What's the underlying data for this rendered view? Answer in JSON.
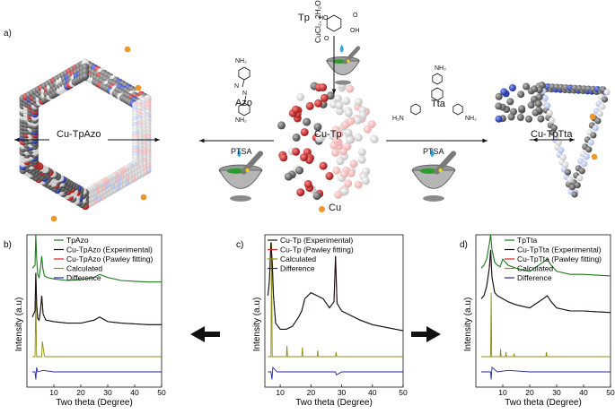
{
  "panel_a": {
    "letter": "a)",
    "tp_label": "Tp",
    "cucl2_label": "CuCl₂, 2H₂O",
    "azo_label": "Azo",
    "tta_label": "Tta",
    "ptsa_left": "PTSA",
    "ptsa_right": "PTSA",
    "cu_tp": "Cu-Tp",
    "cu_tpazo": "Cu-TpAzo",
    "cu_tptta": "Cu-TpTta",
    "cu_legend": "Cu",
    "nh2": "NH₂",
    "h2n": "H₂N",
    "oh": "OH",
    "ho": "HO",
    "o": "O",
    "n": "N",
    "colors": {
      "cu_dot": "#f0962a",
      "carbon": "#5a5a5a",
      "oxygen": "#cc1f1f",
      "nitrogen": "#2a3fb8"
    }
  },
  "colors": {
    "green": "#1a7a1a",
    "black": "#111111",
    "red": "#e0201e",
    "olive": "#8c8c10",
    "blue": "#2626a6"
  },
  "chart_data": [
    {
      "type": "line",
      "letter": "b)",
      "xlabel": "Two theta (Degree)",
      "ylabel": "Intensity (a.u)",
      "xlim": [
        0,
        50
      ],
      "xticks": [
        10,
        20,
        30,
        40,
        50
      ],
      "legend": [
        "TpAzo",
        "Cu-TpAzo (Experimental)",
        "Cu-TpAzo (Pawley fitting)",
        "Calculated",
        "Difference"
      ],
      "series": [
        {
          "name": "TpAzo",
          "x": [
            2,
            3,
            3.3,
            3.6,
            4.0,
            4.5,
            5.0,
            5.5,
            5.9,
            6.5,
            7.5,
            10,
            15,
            20,
            25,
            27,
            30,
            35,
            40,
            45,
            50
          ],
          "y": [
            0.78,
            0.8,
            1.0,
            0.85,
            0.74,
            0.72,
            0.78,
            0.86,
            0.78,
            0.73,
            0.72,
            0.71,
            0.7,
            0.705,
            0.72,
            0.74,
            0.72,
            0.7,
            0.695,
            0.69,
            0.69
          ]
        },
        {
          "name": "Cu-TpAzo (Experimental)",
          "x": [
            2,
            3,
            3.3,
            3.6,
            4.0,
            4.5,
            5.0,
            5.5,
            6.0,
            7,
            10,
            15,
            20,
            25,
            27,
            30,
            35,
            40,
            45,
            50
          ],
          "y": [
            0.46,
            0.5,
            0.75,
            0.55,
            0.45,
            0.44,
            0.5,
            0.6,
            0.48,
            0.44,
            0.43,
            0.42,
            0.42,
            0.44,
            0.46,
            0.43,
            0.42,
            0.415,
            0.41,
            0.41
          ]
        },
        {
          "name": "Cu-TpAzo (Pawley fitting)",
          "x": [
            2,
            3,
            3.3,
            3.6,
            4.0,
            4.5,
            5.0,
            5.5,
            6.0,
            7,
            10,
            15,
            20,
            25,
            27,
            30,
            35,
            40,
            45,
            50
          ],
          "y": [
            0.46,
            0.5,
            0.75,
            0.55,
            0.45,
            0.44,
            0.5,
            0.6,
            0.48,
            0.44,
            0.43,
            0.42,
            0.42,
            0.44,
            0.46,
            0.43,
            0.42,
            0.415,
            0.41,
            0.41
          ]
        },
        {
          "name": "Calculated",
          "x": [
            2,
            3,
            3.3,
            3.6,
            5.5,
            5.7,
            6.5,
            8,
            10,
            50
          ],
          "y": [
            0.2,
            0.2,
            0.56,
            0.2,
            0.2,
            0.3,
            0.2,
            0.2,
            0.2,
            0.2
          ]
        },
        {
          "name": "Difference",
          "x": [
            2,
            3,
            3.3,
            3.6,
            4,
            6,
            10,
            20,
            30,
            40,
            50
          ],
          "y": [
            0.1,
            0.1,
            0.05,
            0.13,
            0.1,
            0.11,
            0.1,
            0.1,
            0.1,
            0.1,
            0.1
          ]
        }
      ]
    },
    {
      "type": "line",
      "letter": "c)",
      "xlabel": "Two theta (Degree)",
      "ylabel": "Intensity (a.u)",
      "xlim": [
        5,
        50
      ],
      "xticks": [
        10,
        20,
        30,
        40,
        50
      ],
      "legend": [
        "Cu-Tp (Experimental)",
        "Cu-Tp (Pawley fitting)",
        "Calculated",
        "Difference"
      ],
      "series": [
        {
          "name": "Cu-Tp (Experimental)",
          "x": [
            6,
            6.5,
            7,
            7.4,
            7.8,
            8.5,
            10,
            12,
            14,
            16,
            17,
            18,
            20,
            22,
            24,
            26,
            27.5,
            28,
            28.5,
            30,
            33,
            36,
            40,
            45,
            50
          ],
          "y": [
            0.6,
            0.7,
            0.95,
            0.82,
            0.6,
            0.42,
            0.38,
            0.38,
            0.4,
            0.46,
            0.5,
            0.58,
            0.62,
            0.6,
            0.58,
            0.52,
            0.56,
            0.86,
            0.55,
            0.5,
            0.47,
            0.44,
            0.41,
            0.39,
            0.37
          ]
        },
        {
          "name": "Cu-Tp (Pawley fitting)",
          "x": [
            6,
            6.5,
            7,
            7.4,
            7.8,
            8.5,
            10,
            12,
            14,
            16,
            17,
            18,
            20,
            22,
            24,
            26,
            27.5,
            28,
            28.5,
            30,
            33,
            36,
            40,
            45,
            50
          ],
          "y": [
            0.6,
            0.7,
            0.95,
            0.82,
            0.6,
            0.42,
            0.38,
            0.38,
            0.4,
            0.46,
            0.5,
            0.58,
            0.62,
            0.6,
            0.58,
            0.52,
            0.56,
            0.86,
            0.55,
            0.5,
            0.47,
            0.44,
            0.41,
            0.39,
            0.37
          ]
        },
        {
          "name": "Calculated",
          "x": [
            6,
            7,
            7.2,
            7.4,
            10,
            12,
            12.2,
            12.4,
            15,
            17,
            17.2,
            17.4,
            20,
            22,
            22.2,
            22.4,
            25,
            28,
            28.2,
            28.4,
            35,
            50
          ],
          "y": [
            0.2,
            0.2,
            0.95,
            0.2,
            0.2,
            0.2,
            0.27,
            0.2,
            0.2,
            0.2,
            0.26,
            0.2,
            0.2,
            0.2,
            0.24,
            0.2,
            0.2,
            0.2,
            0.23,
            0.2,
            0.2,
            0.2
          ]
        },
        {
          "name": "Difference",
          "x": [
            6,
            7,
            7.3,
            7.6,
            9,
            14,
            20,
            28,
            28.3,
            30,
            40,
            50
          ],
          "y": [
            0.1,
            0.1,
            0.05,
            0.13,
            0.1,
            0.1,
            0.1,
            0.1,
            0.08,
            0.1,
            0.1,
            0.1
          ]
        }
      ]
    },
    {
      "type": "line",
      "letter": "d)",
      "xlabel": "Two theta (Degree)",
      "ylabel": "Intensity (a.u)",
      "xlim": [
        0,
        50
      ],
      "xticks": [
        10,
        20,
        30,
        40,
        50
      ],
      "legend": [
        "TpTta",
        "Cu-TpTta (Experimental)",
        "Cu-TpTta (Pawley fitting)",
        "Calculated",
        "Difference"
      ],
      "series": [
        {
          "name": "TpTta",
          "x": [
            2,
            3,
            4,
            5,
            5.5,
            6,
            7,
            8,
            9,
            10,
            12,
            15,
            20,
            25,
            26.5,
            28,
            30,
            35,
            40,
            45,
            50
          ],
          "y": [
            0.78,
            0.8,
            0.84,
            0.94,
            1.0,
            0.9,
            0.82,
            0.8,
            0.79,
            0.84,
            0.8,
            0.78,
            0.76,
            0.82,
            0.84,
            0.8,
            0.76,
            0.74,
            0.74,
            0.735,
            0.73
          ]
        },
        {
          "name": "Cu-TpTta (Experimental)",
          "x": [
            2,
            3,
            4,
            5,
            5.5,
            6,
            7,
            8,
            10,
            12,
            15,
            20,
            25,
            26.5,
            28,
            30,
            35,
            40,
            45,
            50
          ],
          "y": [
            0.58,
            0.6,
            0.66,
            0.78,
            0.9,
            0.72,
            0.62,
            0.6,
            0.58,
            0.56,
            0.54,
            0.52,
            0.58,
            0.6,
            0.56,
            0.52,
            0.5,
            0.5,
            0.495,
            0.49
          ]
        },
        {
          "name": "Cu-TpTta (Pawley fitting)",
          "x": [
            2,
            3,
            4,
            5,
            5.5,
            6,
            7,
            8,
            10,
            12,
            15,
            20,
            25,
            26.5,
            28,
            30,
            35,
            40,
            45,
            50
          ],
          "y": [
            0.58,
            0.6,
            0.66,
            0.78,
            0.9,
            0.72,
            0.62,
            0.6,
            0.58,
            0.56,
            0.54,
            0.52,
            0.58,
            0.6,
            0.56,
            0.52,
            0.5,
            0.5,
            0.495,
            0.49
          ]
        },
        {
          "name": "Calculated",
          "x": [
            2,
            5.5,
            5.7,
            5.9,
            9,
            9.2,
            9.4,
            11,
            11.2,
            11.4,
            14,
            14.2,
            14.4,
            26,
            26.2,
            26.4,
            50
          ],
          "y": [
            0.2,
            0.2,
            0.62,
            0.2,
            0.2,
            0.25,
            0.2,
            0.2,
            0.23,
            0.2,
            0.2,
            0.22,
            0.2,
            0.2,
            0.23,
            0.2,
            0.2
          ]
        },
        {
          "name": "Difference",
          "x": [
            2,
            5.5,
            5.7,
            6,
            8,
            12,
            20,
            26,
            30,
            40,
            50
          ],
          "y": [
            0.1,
            0.1,
            0.05,
            0.13,
            0.1,
            0.11,
            0.1,
            0.1,
            0.1,
            0.1,
            0.1
          ]
        }
      ]
    }
  ]
}
